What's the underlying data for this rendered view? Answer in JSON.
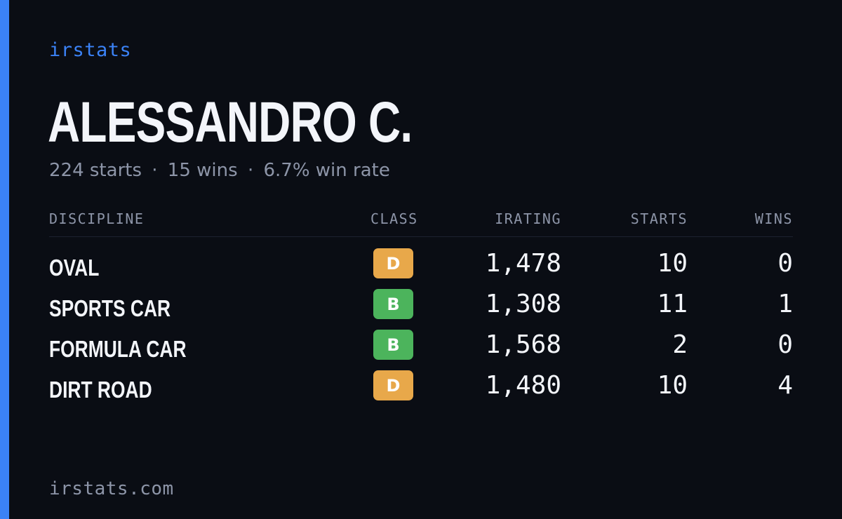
{
  "brand": "irstats",
  "driver": {
    "name": "ALESSANDRO C.",
    "starts_text": "224 starts",
    "wins_text": "15 wins",
    "winrate_text": "6.7% win rate",
    "separator": "·"
  },
  "table": {
    "headers": {
      "discipline": "DISCIPLINE",
      "class": "CLASS",
      "irating": "IRATING",
      "starts": "STARTS",
      "wins": "WINS"
    },
    "rows": [
      {
        "discipline": "OVAL",
        "class": "D",
        "class_color": "#e8a84a",
        "irating": "1,478",
        "starts": "10",
        "wins": "0"
      },
      {
        "discipline": "SPORTS CAR",
        "class": "B",
        "class_color": "#4cb45c",
        "irating": "1,308",
        "starts": "11",
        "wins": "1"
      },
      {
        "discipline": "FORMULA CAR",
        "class": "B",
        "class_color": "#4cb45c",
        "irating": "1,568",
        "starts": "2",
        "wins": "0"
      },
      {
        "discipline": "DIRT ROAD",
        "class": "D",
        "class_color": "#e8a84a",
        "irating": "1,480",
        "starts": "10",
        "wins": "4"
      }
    ]
  },
  "footer": {
    "url": "irstats.com"
  },
  "colors": {
    "accent": "#3b82f6",
    "background": "#0a0d14",
    "text_primary": "#f3f5fa",
    "text_muted": "#8d95a8"
  }
}
